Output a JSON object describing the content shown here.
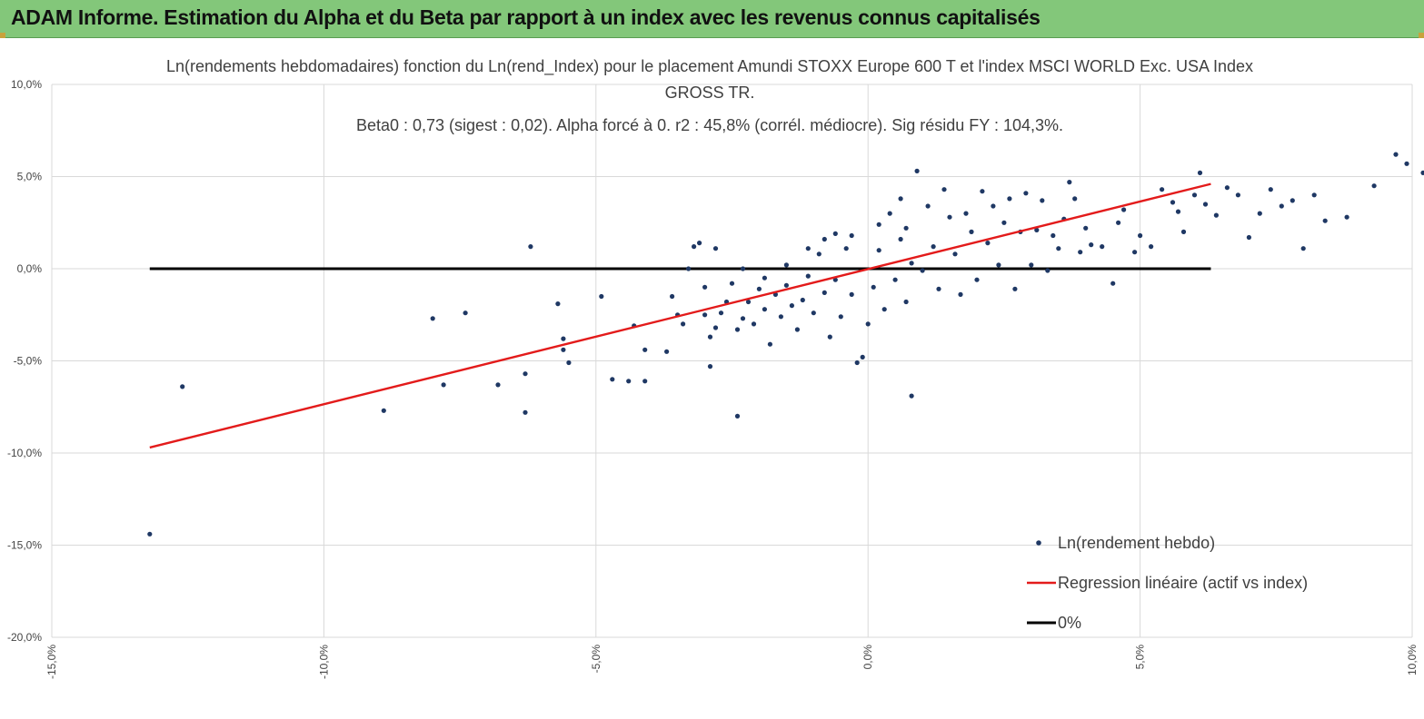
{
  "header": {
    "banner_text": "ADAM Informe. Estimation du Alpha et du Beta par rapport à un index avec les revenus connus capitalisés"
  },
  "colors": {
    "banner": "#83c77a",
    "points": "#1f3864",
    "regression": "#e31b1b",
    "zero_line": "#000000",
    "grid": "#d9d9d9"
  },
  "chart_data": {
    "type": "scatter",
    "title_lines": [
      "Ln(rendements hebdomadaires) fonction du Ln(rend_Index) pour le placement Amundi STOXX Europe 600 T et l'index MSCI WORLD Exc. USA Index",
      "GROSS TR.",
      "Beta0 : 0,73  (sigest : 0,02). Alpha forcé à 0. r2 : 45,8% (corrél. médiocre). Sig résidu FY : 104,3%."
    ],
    "xlim": [
      -0.15,
      0.1
    ],
    "ylim": [
      -0.2,
      0.1
    ],
    "x_ticks": [
      -0.15,
      -0.1,
      -0.05,
      0.0,
      0.05,
      0.1
    ],
    "y_ticks": [
      0.1,
      0.05,
      0.0,
      -0.05,
      -0.1,
      -0.15,
      -0.2
    ],
    "x_tick_labels": [
      "-15,0%",
      "-10,0%",
      "-5,0%",
      "0,0%",
      "5,0%",
      "10,0%"
    ],
    "y_tick_labels": [
      "10,0%",
      "5,0%",
      "0,0%",
      "-5,0%",
      "-10,0%",
      "-15,0%",
      "-20,0%"
    ],
    "grid": "vertical and horizontal major gridlines",
    "legend_position": "bottom-right",
    "series": [
      {
        "name": "Ln(rendement hebdo)",
        "kind": "points",
        "points": [
          [
            -0.132,
            -0.144
          ],
          [
            -0.126,
            -0.064
          ],
          [
            -0.089,
            -0.077
          ],
          [
            -0.08,
            -0.027
          ],
          [
            -0.078,
            -0.063
          ],
          [
            -0.074,
            -0.024
          ],
          [
            -0.068,
            -0.063
          ],
          [
            -0.063,
            -0.078
          ],
          [
            -0.063,
            -0.057
          ],
          [
            -0.062,
            0.012
          ],
          [
            -0.057,
            -0.019
          ],
          [
            -0.056,
            -0.038
          ],
          [
            -0.056,
            -0.044
          ],
          [
            -0.055,
            -0.051
          ],
          [
            -0.049,
            -0.015
          ],
          [
            -0.047,
            -0.06
          ],
          [
            -0.044,
            -0.061
          ],
          [
            -0.043,
            -0.031
          ],
          [
            -0.041,
            -0.061
          ],
          [
            -0.041,
            -0.044
          ],
          [
            -0.037,
            -0.045
          ],
          [
            -0.036,
            -0.015
          ],
          [
            -0.035,
            -0.025
          ],
          [
            -0.034,
            -0.03
          ],
          [
            -0.033,
            0.0
          ],
          [
            -0.032,
            0.012
          ],
          [
            -0.031,
            0.014
          ],
          [
            -0.03,
            -0.01
          ],
          [
            -0.03,
            -0.025
          ],
          [
            -0.029,
            -0.037
          ],
          [
            -0.029,
            -0.053
          ],
          [
            -0.028,
            -0.032
          ],
          [
            -0.028,
            0.011
          ],
          [
            -0.027,
            -0.024
          ],
          [
            -0.026,
            -0.018
          ],
          [
            -0.025,
            -0.008
          ],
          [
            -0.024,
            -0.033
          ],
          [
            -0.024,
            -0.08
          ],
          [
            -0.023,
            -0.027
          ],
          [
            -0.023,
            0.0
          ],
          [
            -0.022,
            -0.018
          ],
          [
            -0.021,
            -0.03
          ],
          [
            -0.02,
            -0.011
          ],
          [
            -0.019,
            -0.022
          ],
          [
            -0.019,
            -0.005
          ],
          [
            -0.018,
            -0.041
          ],
          [
            -0.017,
            -0.014
          ],
          [
            -0.016,
            -0.026
          ],
          [
            -0.015,
            -0.009
          ],
          [
            -0.015,
            0.002
          ],
          [
            -0.014,
            -0.02
          ],
          [
            -0.013,
            -0.033
          ],
          [
            -0.012,
            -0.017
          ],
          [
            -0.011,
            -0.004
          ],
          [
            -0.011,
            0.011
          ],
          [
            -0.01,
            -0.024
          ],
          [
            -0.009,
            0.008
          ],
          [
            -0.008,
            -0.013
          ],
          [
            -0.008,
            0.016
          ],
          [
            -0.007,
            -0.037
          ],
          [
            -0.006,
            -0.006
          ],
          [
            -0.006,
            0.019
          ],
          [
            -0.005,
            -0.026
          ],
          [
            -0.004,
            0.011
          ],
          [
            -0.003,
            -0.014
          ],
          [
            -0.003,
            0.018
          ],
          [
            -0.002,
            -0.051
          ],
          [
            -0.001,
            -0.048
          ],
          [
            0.0,
            -0.03
          ],
          [
            0.001,
            -0.01
          ],
          [
            0.002,
            0.024
          ],
          [
            0.002,
            0.01
          ],
          [
            0.003,
            -0.022
          ],
          [
            0.004,
            0.03
          ],
          [
            0.005,
            -0.006
          ],
          [
            0.006,
            0.038
          ],
          [
            0.006,
            0.016
          ],
          [
            0.007,
            -0.018
          ],
          [
            0.007,
            0.022
          ],
          [
            0.008,
            -0.069
          ],
          [
            0.008,
            0.003
          ],
          [
            0.009,
            0.053
          ],
          [
            0.01,
            -0.001
          ],
          [
            0.011,
            0.034
          ],
          [
            0.012,
            0.012
          ],
          [
            0.013,
            -0.011
          ],
          [
            0.014,
            0.043
          ],
          [
            0.015,
            0.028
          ],
          [
            0.016,
            0.008
          ],
          [
            0.017,
            -0.014
          ],
          [
            0.018,
            0.03
          ],
          [
            0.019,
            0.02
          ],
          [
            0.02,
            -0.006
          ],
          [
            0.021,
            0.042
          ],
          [
            0.022,
            0.014
          ],
          [
            0.023,
            0.034
          ],
          [
            0.024,
            0.002
          ],
          [
            0.025,
            0.025
          ],
          [
            0.026,
            0.038
          ],
          [
            0.027,
            -0.011
          ],
          [
            0.028,
            0.02
          ],
          [
            0.029,
            0.041
          ],
          [
            0.03,
            0.002
          ],
          [
            0.031,
            0.021
          ],
          [
            0.032,
            0.037
          ],
          [
            0.033,
            -0.001
          ],
          [
            0.034,
            0.018
          ],
          [
            0.035,
            0.011
          ],
          [
            0.036,
            0.027
          ],
          [
            0.037,
            0.047
          ],
          [
            0.038,
            0.038
          ],
          [
            0.039,
            0.009
          ],
          [
            0.04,
            0.022
          ],
          [
            0.041,
            0.013
          ],
          [
            0.043,
            0.012
          ],
          [
            0.045,
            -0.008
          ],
          [
            0.046,
            0.025
          ],
          [
            0.047,
            0.032
          ],
          [
            0.049,
            0.009
          ],
          [
            0.05,
            0.018
          ],
          [
            0.052,
            0.012
          ],
          [
            0.054,
            0.043
          ],
          [
            0.056,
            0.036
          ],
          [
            0.057,
            0.031
          ],
          [
            0.058,
            0.02
          ],
          [
            0.06,
            0.04
          ],
          [
            0.061,
            0.052
          ],
          [
            0.062,
            0.035
          ],
          [
            0.064,
            0.029
          ],
          [
            0.066,
            0.044
          ],
          [
            0.068,
            0.04
          ],
          [
            0.07,
            0.017
          ],
          [
            0.072,
            0.03
          ],
          [
            0.074,
            0.043
          ],
          [
            0.076,
            0.034
          ],
          [
            0.078,
            0.037
          ],
          [
            0.08,
            0.011
          ],
          [
            0.082,
            0.04
          ],
          [
            0.084,
            0.026
          ],
          [
            0.088,
            0.028
          ],
          [
            0.093,
            0.045
          ],
          [
            0.097,
            0.062
          ],
          [
            0.099,
            0.057
          ],
          [
            0.102,
            0.052
          ]
        ]
      },
      {
        "name": "Regression linéaire (actif vs index)",
        "kind": "line",
        "x": [
          -0.132,
          0.063
        ],
        "y": [
          -0.097,
          0.046
        ]
      },
      {
        "name": "0%",
        "kind": "line",
        "x": [
          -0.132,
          0.063
        ],
        "y": [
          0.0,
          0.0
        ]
      }
    ]
  }
}
